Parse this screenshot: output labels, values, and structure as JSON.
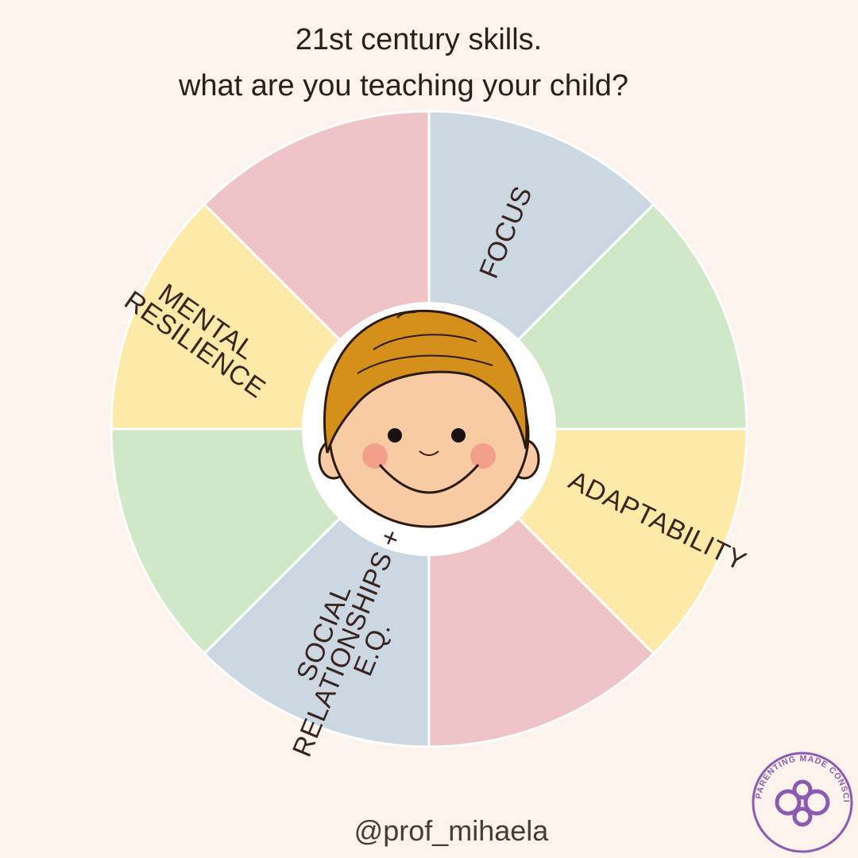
{
  "header": {
    "title_lines": [
      "21st century skills.",
      "what are you teaching your child?"
    ]
  },
  "wheel": {
    "labels": [
      {
        "lines": [
          "FOCUS"
        ]
      },
      {
        "lines": [
          "ADAPTABILITY"
        ]
      },
      {
        "lines": [
          "SOCIAL",
          "RELATIONSHIPS +",
          "E.Q."
        ]
      },
      {
        "lines": [
          "MENTAL",
          "RESILIENCE"
        ]
      }
    ]
  },
  "footer": {
    "handle": "@prof_mihaela"
  },
  "logo": {
    "text_parts": [
      "PARENTING ",
      "MADE",
      " CONSCIOUS"
    ]
  }
}
